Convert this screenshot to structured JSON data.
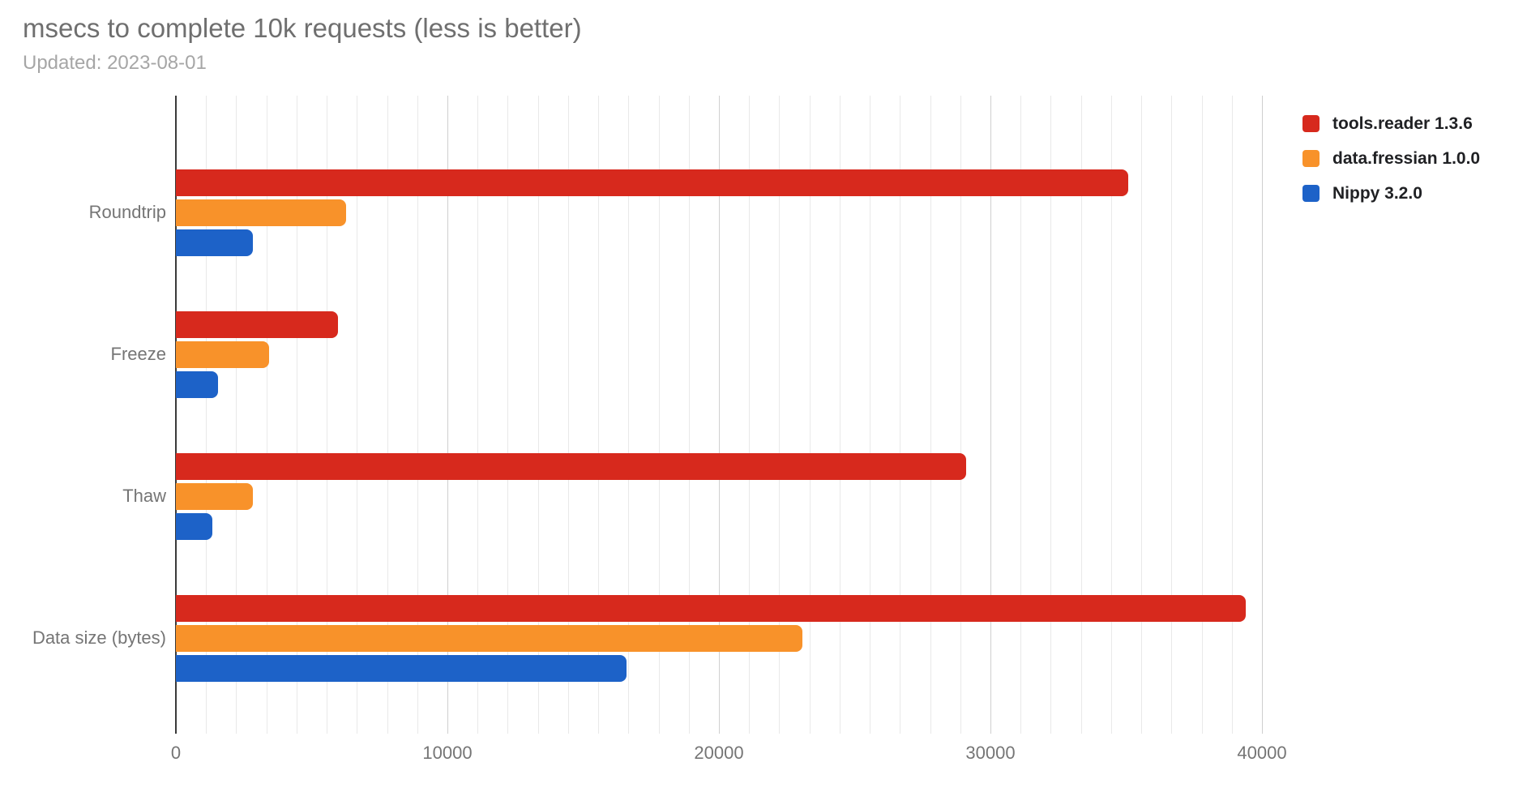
{
  "header": {
    "title": "msecs to complete 10k requests (less is better)",
    "subtitle": "Updated: 2023-08-01"
  },
  "colors": {
    "background": "#ffffff",
    "title_text": "#6f6f6f",
    "subtitle_text": "#a6a6a6",
    "axis_text": "#757575",
    "legend_text": "#202124",
    "zero_axis_line": "#3a3a3a",
    "gridline_major": "#cfcfcf",
    "gridline_minor": "#e9e9e9",
    "series": [
      "#d7291d",
      "#f8922a",
      "#1d62c8"
    ]
  },
  "legend": {
    "position": "top-right",
    "items": [
      {
        "label": "tools.reader 1.3.6",
        "color": "#d7291d"
      },
      {
        "label": "data.fressian 1.0.0",
        "color": "#f8922a"
      },
      {
        "label": "Nippy 3.2.0",
        "color": "#1d62c8"
      }
    ]
  },
  "chart_data": {
    "type": "bar",
    "orientation": "horizontal",
    "title": "msecs to complete 10k requests (less is better)",
    "subtitle": "Updated: 2023-08-01",
    "categories": [
      "Roundtrip",
      "Freeze",
      "Thaw",
      "Data size (bytes)"
    ],
    "series": [
      {
        "name": "tools.reader 1.3.6",
        "color": "#d7291d",
        "values": [
          35080,
          5970,
          29110,
          39390
        ]
      },
      {
        "name": "data.fressian 1.0.0",
        "color": "#f8922a",
        "values": [
          6280,
          3430,
          2840,
          23060
        ]
      },
      {
        "name": "Nippy 3.2.0",
        "color": "#1d62c8",
        "values": [
          2840,
          1540,
          1340,
          16610
        ]
      }
    ],
    "xlim": [
      0,
      40000
    ],
    "x_ticks": [
      0,
      10000,
      20000,
      30000,
      40000
    ],
    "x_tick_labels": [
      "0",
      "10000",
      "20000",
      "30000",
      "40000"
    ],
    "minor_gridline_intervals_per_major": 9,
    "grid": true,
    "legend_position": "top-right",
    "xlabel": "",
    "ylabel": ""
  }
}
